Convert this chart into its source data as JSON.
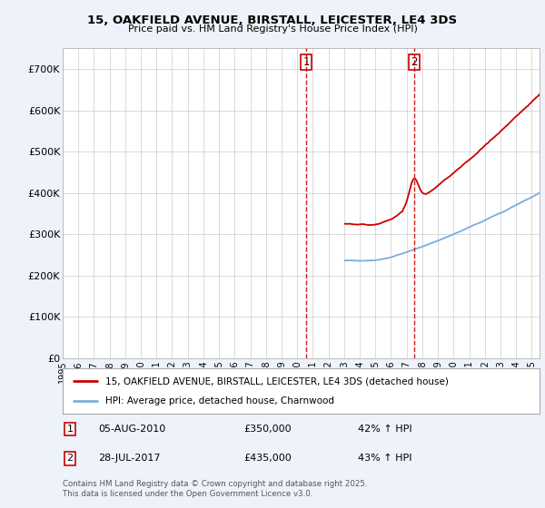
{
  "title_line1": "15, OAKFIELD AVENUE, BIRSTALL, LEICESTER, LE4 3DS",
  "title_line2": "Price paid vs. HM Land Registry's House Price Index (HPI)",
  "property_label": "15, OAKFIELD AVENUE, BIRSTALL, LEICESTER, LE4 3DS (detached house)",
  "hpi_label": "HPI: Average price, detached house, Charnwood",
  "sale1_date": "05-AUG-2010",
  "sale1_price": 350000,
  "sale1_pct": "42% ↑ HPI",
  "sale2_date": "28-JUL-2017",
  "sale2_price": 435000,
  "sale2_pct": "43% ↑ HPI",
  "footer": "Contains HM Land Registry data © Crown copyright and database right 2025.\nThis data is licensed under the Open Government Licence v3.0.",
  "red_color": "#cc0000",
  "blue_color": "#7aaddc",
  "vline_color": "#cc0000",
  "background_color": "#eef2fa",
  "plot_bg_color": "#ffffff",
  "ylim": [
    0,
    750000
  ],
  "yticks": [
    0,
    100000,
    200000,
    300000,
    400000,
    500000,
    600000,
    700000
  ],
  "ytick_labels": [
    "£0",
    "£100K",
    "£200K",
    "£300K",
    "£400K",
    "£500K",
    "£600K",
    "£700K"
  ]
}
